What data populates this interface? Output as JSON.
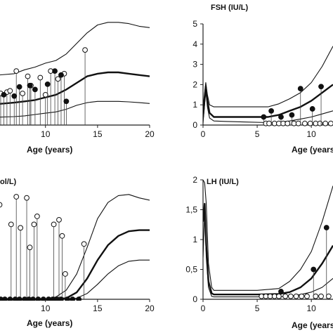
{
  "chart_data": [
    {
      "panel": "top-left",
      "type": "line",
      "title": "",
      "xlabel": "Age (years)",
      "xlim": [
        5.5,
        20
      ],
      "ylim": [
        0,
        4
      ],
      "x_ticks": [
        10,
        15,
        20
      ],
      "y_ticks": [],
      "series": [
        {
          "role": "upper",
          "x": [
            5.5,
            7,
            8,
            9,
            10,
            11,
            12,
            13,
            14,
            15,
            16,
            17,
            18,
            19,
            20
          ],
          "y": [
            1.9,
            1.95,
            2.1,
            2.2,
            2.35,
            2.45,
            2.7,
            3.1,
            3.5,
            3.8,
            3.9,
            3.9,
            3.85,
            3.75,
            3.7
          ]
        },
        {
          "role": "median",
          "x": [
            5.5,
            7,
            8,
            9,
            10,
            11,
            12,
            13,
            14,
            15,
            16,
            17,
            18,
            19,
            20
          ],
          "y": [
            0.8,
            0.85,
            0.9,
            0.95,
            1.05,
            1.15,
            1.35,
            1.6,
            1.85,
            1.95,
            2.0,
            2.0,
            1.95,
            1.9,
            1.85
          ]
        },
        {
          "role": "lower",
          "x": [
            5.5,
            7,
            8,
            9,
            10,
            11,
            12,
            13,
            14,
            15,
            16,
            17,
            18,
            19,
            20
          ],
          "y": [
            0.3,
            0.32,
            0.35,
            0.4,
            0.45,
            0.5,
            0.6,
            0.75,
            0.85,
            0.9,
            0.9,
            0.9,
            0.88,
            0.85,
            0.82
          ]
        }
      ],
      "points_filled": {
        "x": [
          6.0,
          7.0,
          7.5,
          8.5,
          9.0,
          10.2,
          10.9,
          11.5,
          12.0
        ],
        "y": [
          1.15,
          1.1,
          1.45,
          1.5,
          1.35,
          1.55,
          2.05,
          1.9,
          0.9
        ]
      },
      "points_open": {
        "x": [
          5.7,
          6.3,
          6.6,
          7.2,
          7.8,
          8.3,
          8.6,
          9.5,
          10.0,
          10.5,
          11.2,
          11.8,
          13.8
        ],
        "y": [
          1.2,
          1.25,
          1.3,
          2.05,
          1.2,
          1.85,
          1.5,
          1.8,
          1.15,
          2.05,
          1.75,
          1.95,
          2.85
        ]
      }
    },
    {
      "panel": "top-right",
      "type": "line",
      "title": "FSH (IU/L)",
      "xlabel": "Age (years)",
      "xlim": [
        0,
        12
      ],
      "ylim": [
        0,
        5
      ],
      "x_ticks": [
        0,
        5,
        10
      ],
      "y_ticks": [
        "0",
        "1",
        "2",
        "3",
        "4",
        "5"
      ],
      "series": [
        {
          "role": "upper",
          "x": [
            0,
            0.25,
            0.4,
            0.6,
            1,
            2,
            4,
            6,
            7,
            8,
            9,
            10,
            11,
            12
          ],
          "y": [
            0.9,
            2.1,
            1.5,
            1.0,
            0.9,
            0.9,
            0.9,
            0.9,
            1.05,
            1.3,
            1.6,
            2.1,
            2.9,
            3.9
          ]
        },
        {
          "role": "median",
          "x": [
            0,
            0.25,
            0.4,
            0.6,
            1,
            2,
            4,
            6,
            7,
            8,
            9,
            10,
            11,
            12
          ],
          "y": [
            0.4,
            1.9,
            1.2,
            0.6,
            0.4,
            0.4,
            0.4,
            0.4,
            0.5,
            0.7,
            0.9,
            1.2,
            1.6,
            2.0
          ]
        },
        {
          "role": "lower",
          "x": [
            0,
            0.25,
            0.4,
            0.6,
            1,
            2,
            4,
            6,
            7,
            8,
            9,
            10,
            11,
            12
          ],
          "y": [
            0.1,
            1.7,
            0.9,
            0.35,
            0.2,
            0.18,
            0.15,
            0.12,
            0.14,
            0.2,
            0.3,
            0.4,
            0.55,
            0.7
          ]
        }
      ],
      "points_filled": {
        "x": [
          5.6,
          6.3,
          7.2,
          8.2,
          9.0,
          10.1,
          10.9
        ],
        "y": [
          0.4,
          0.7,
          0.4,
          0.5,
          1.8,
          0.8,
          1.9
        ]
      },
      "points_open": {
        "x": [
          5.8,
          6.1,
          6.6,
          7.0,
          7.4,
          7.8,
          8.4,
          8.8,
          9.4,
          9.9,
          10.4,
          10.8,
          11.3,
          11.8
        ],
        "y": [
          0.08,
          0.08,
          0.08,
          0.08,
          0.08,
          0.08,
          0.08,
          0.08,
          0.08,
          0.08,
          0.08,
          0.08,
          0.08,
          0.08
        ]
      }
    },
    {
      "panel": "bottom-left",
      "type": "line",
      "title": "ol/L)",
      "xlabel": "Age (years)",
      "xlim": [
        5.5,
        20
      ],
      "ylim": [
        0,
        100
      ],
      "x_ticks": [
        10,
        15,
        20
      ],
      "y_ticks": [],
      "series": [
        {
          "role": "upper",
          "x": [
            5.5,
            8,
            10,
            11,
            12,
            13,
            14,
            15,
            16,
            17,
            18,
            19,
            20
          ],
          "y": [
            0,
            0,
            0,
            2,
            8,
            22,
            45,
            70,
            84,
            90,
            91,
            88,
            86
          ]
        },
        {
          "role": "median",
          "x": [
            5.5,
            8,
            10,
            11,
            12,
            13,
            14,
            15,
            16,
            17,
            18,
            19,
            20
          ],
          "y": [
            0,
            0,
            0,
            0,
            1,
            6,
            18,
            34,
            47,
            55,
            59,
            60,
            60
          ]
        },
        {
          "role": "lower",
          "x": [
            5.5,
            8,
            10,
            11,
            12,
            13,
            14,
            15,
            16,
            17,
            18,
            19,
            20
          ],
          "y": [
            0,
            0,
            0,
            0,
            0,
            1,
            5,
            13,
            22,
            29,
            33,
            34,
            34
          ]
        }
      ],
      "points_open": {
        "x": [
          5.6,
          6.7,
          7.2,
          7.6,
          8.2,
          8.5,
          8.9,
          9.2,
          10.8,
          11.3,
          11.6,
          11.9,
          13.7
        ],
        "y": [
          82,
          65,
          89,
          62,
          88,
          45,
          65,
          72,
          65,
          69,
          55,
          22,
          48
        ]
      },
      "points_filled": {
        "x": [
          5.7,
          6.1,
          6.6,
          7.1,
          7.5,
          8.0,
          8.4,
          8.8,
          9.3,
          9.8,
          10.3,
          10.7,
          11.1,
          11.5,
          12.1,
          12.6,
          13.2
        ],
        "y": [
          0,
          0,
          0,
          0,
          0,
          0,
          0,
          0,
          0,
          0,
          0,
          0,
          0,
          0,
          0,
          0,
          0
        ]
      }
    },
    {
      "panel": "bottom-right",
      "type": "line",
      "title": "LH (IU/L)",
      "xlabel": "Age (years)",
      "xlim": [
        0,
        12
      ],
      "ylim": [
        0,
        2
      ],
      "x_ticks": [
        0,
        5,
        10
      ],
      "y_ticks": [
        "0",
        "0,5",
        "1",
        "1,5",
        "2"
      ],
      "series": [
        {
          "role": "upper",
          "x": [
            0,
            0.15,
            0.3,
            0.5,
            0.8,
            1,
            2,
            5,
            7,
            8,
            9,
            10,
            11,
            12
          ],
          "y": [
            2.0,
            1.95,
            1.6,
            0.6,
            0.2,
            0.15,
            0.15,
            0.15,
            0.18,
            0.3,
            0.5,
            0.8,
            1.3,
            1.9
          ]
        },
        {
          "role": "median",
          "x": [
            0,
            0.15,
            0.3,
            0.5,
            0.8,
            1,
            2,
            5,
            7,
            8,
            9,
            10,
            11,
            12
          ],
          "y": [
            1.3,
            1.6,
            0.9,
            0.3,
            0.1,
            0.08,
            0.08,
            0.08,
            0.09,
            0.12,
            0.2,
            0.35,
            0.6,
            0.9
          ]
        },
        {
          "role": "lower",
          "x": [
            0,
            0.15,
            0.3,
            0.5,
            0.8,
            1,
            2,
            5,
            7,
            8,
            9,
            10,
            11,
            12
          ],
          "y": [
            0.7,
            1.45,
            0.7,
            0.2,
            0.05,
            0.04,
            0.04,
            0.04,
            0.04,
            0.05,
            0.08,
            0.12,
            0.2,
            0.35
          ]
        }
      ],
      "points_filled": {
        "x": [
          7.2,
          10.2,
          11.4
        ],
        "y": [
          0.13,
          0.5,
          1.2
        ]
      },
      "points_open": {
        "x": [
          5.4,
          5.8,
          6.2,
          6.6,
          7.0,
          7.6,
          8.1,
          8.6,
          9.1,
          9.6,
          10.4,
          10.9,
          11.6
        ],
        "y": [
          0.05,
          0.05,
          0.05,
          0.05,
          0.05,
          0.05,
          0.05,
          0.05,
          0.05,
          0.05,
          0.05,
          0.05,
          0.05
        ]
      }
    }
  ]
}
